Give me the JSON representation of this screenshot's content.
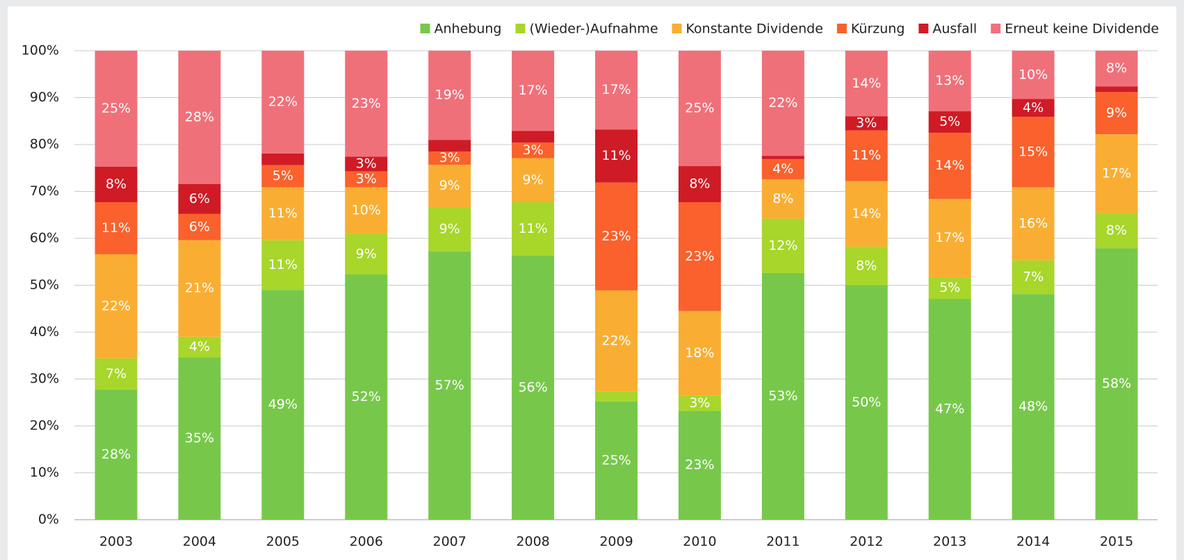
{
  "chart_data": {
    "type": "stacked_bar",
    "categories": [
      "2003",
      "2004",
      "2005",
      "2006",
      "2007",
      "2008",
      "2009",
      "2010",
      "2011",
      "2012",
      "2013",
      "2014",
      "2015"
    ],
    "series": [
      {
        "name": "Anhebung",
        "color": "#77c84a",
        "values": [
          27.7,
          34.6,
          49.0,
          52.3,
          57.2,
          56.3,
          25.2,
          23.2,
          52.6,
          50.0,
          47.1,
          48.1,
          57.9
        ],
        "value_labels": [
          "28%",
          "35%",
          "49%",
          "52%",
          "57%",
          "56%",
          "25%",
          "23%",
          "53%",
          "50%",
          "47%",
          "48%",
          "58%"
        ]
      },
      {
        "name": "(Wieder-)Aufnahme",
        "color": "#a8d62a",
        "values": [
          6.7,
          4.4,
          10.6,
          8.6,
          9.4,
          11.4,
          2.1,
          3.2,
          11.6,
          8.2,
          4.6,
          7.2,
          7.5
        ],
        "value_labels": [
          "7%",
          "4%",
          "11%",
          "9%",
          "9%",
          "11%",
          null,
          "3%",
          "12%",
          "8%",
          "5%",
          "7%",
          "8%"
        ]
      },
      {
        "name": "Konstante Dividende",
        "color": "#f9ae33",
        "values": [
          22.2,
          20.6,
          11.3,
          10.0,
          9.1,
          9.4,
          21.6,
          18.1,
          8.4,
          14.0,
          16.7,
          15.6,
          16.8
        ],
        "value_labels": [
          "22%",
          "21%",
          "11%",
          "10%",
          "9%",
          "9%",
          "22%",
          "18%",
          "8%",
          "14%",
          "17%",
          "16%",
          "17%"
        ]
      },
      {
        "name": "Kürzung",
        "color": "#fa612c",
        "values": [
          11.1,
          5.6,
          4.7,
          3.4,
          2.8,
          3.3,
          23.0,
          23.2,
          4.3,
          10.8,
          14.1,
          15.0,
          9.0
        ],
        "value_labels": [
          "11%",
          "6%",
          "5%",
          "3%",
          "3%",
          "3%",
          "23%",
          "23%",
          "4%",
          "11%",
          "14%",
          "15%",
          "9%"
        ]
      },
      {
        "name": "Ausfall",
        "color": "#cf1b25",
        "values": [
          7.6,
          6.4,
          2.5,
          3.1,
          2.5,
          2.5,
          11.3,
          7.7,
          0.7,
          3.0,
          4.6,
          3.8,
          1.2
        ],
        "value_labels": [
          "8%",
          "6%",
          null,
          "3%",
          null,
          null,
          "11%",
          "8%",
          null,
          "3%",
          "5%",
          "4%",
          null
        ]
      },
      {
        "name": "Erneut keine Dividende",
        "color": "#f0707a",
        "values": [
          24.7,
          28.4,
          21.9,
          22.6,
          19.0,
          17.1,
          16.8,
          24.6,
          22.4,
          14.0,
          12.9,
          10.3,
          7.6
        ],
        "value_labels": [
          "25%",
          "28%",
          "22%",
          "23%",
          "19%",
          "17%",
          "17%",
          "25%",
          "22%",
          "14%",
          "13%",
          "10%",
          "8%"
        ]
      }
    ],
    "ylim": [
      0,
      100
    ],
    "yticks": [
      {
        "value": 0,
        "label": "0%"
      },
      {
        "value": 10,
        "label": "10%"
      },
      {
        "value": 20,
        "label": "20%"
      },
      {
        "value": 30,
        "label": "30%"
      },
      {
        "value": 40,
        "label": "40%"
      },
      {
        "value": 50,
        "label": "50%"
      },
      {
        "value": 60,
        "label": "60%"
      },
      {
        "value": 70,
        "label": "70%"
      },
      {
        "value": 80,
        "label": "80%"
      },
      {
        "value": 90,
        "label": "90%"
      },
      {
        "value": 100,
        "label": "100%"
      }
    ],
    "grid": true,
    "legend": "top-right"
  }
}
